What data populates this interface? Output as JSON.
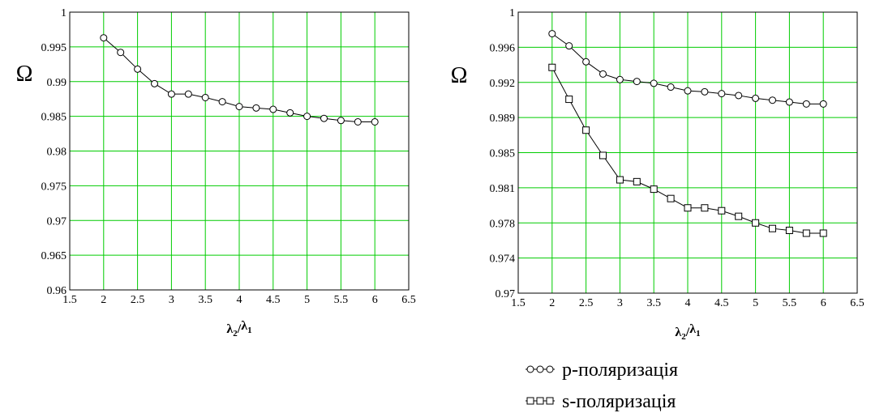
{
  "chart_data": [
    {
      "type": "line",
      "xlabel": "λ2/λ1",
      "xlabel_main": "λ",
      "xlabel_sub1": "2",
      "xlabel_sep": "/",
      "xlabel_main2": "λ",
      "xlabel_sub2": "1",
      "ylabel": "Ω",
      "xlim": [
        1.5,
        6.5
      ],
      "ylim": [
        0.96,
        1.0
      ],
      "xticks": [
        "1.5",
        "2",
        "2.5",
        "3",
        "3.5",
        "4",
        "4.5",
        "5",
        "5.5",
        "6",
        "6.5"
      ],
      "yticks": [
        "0.96",
        "0.965",
        "0.97",
        "0.975",
        "0.98",
        "0.985",
        "0.99",
        "0.995",
        "1"
      ],
      "grid": true,
      "grid_color": "#00cc00",
      "series": [
        {
          "marker": "circle",
          "x": [
            2,
            2.25,
            2.5,
            2.75,
            3,
            3.25,
            3.5,
            3.75,
            4,
            4.25,
            4.5,
            4.75,
            5,
            5.25,
            5.5,
            5.75,
            6
          ],
          "values": [
            0.9963,
            0.9942,
            0.9918,
            0.9897,
            0.9882,
            0.9882,
            0.9877,
            0.9871,
            0.9864,
            0.9862,
            0.986,
            0.9855,
            0.985,
            0.9847,
            0.9844,
            0.9842,
            0.9842
          ]
        }
      ]
    },
    {
      "type": "line",
      "xlabel": "λ2/λ1",
      "xlabel_main": "λ",
      "xlabel_sub1": "2",
      "xlabel_sep": "/",
      "xlabel_main2": "λ",
      "xlabel_sub2": "1",
      "ylabel": "Ω",
      "xlim": [
        1.5,
        6.5
      ],
      "ylim": [
        0.97,
        1.0
      ],
      "xticks": [
        "1.5",
        "2",
        "2.5",
        "3",
        "3.5",
        "4",
        "4.5",
        "5",
        "5.5",
        "6",
        "6.5"
      ],
      "yticks": [
        "0.97",
        "0.974",
        "0.978",
        "0.981",
        "0.985",
        "0.989",
        "0.992",
        "0.996",
        "1"
      ],
      "grid": true,
      "grid_color": "#00cc00",
      "legend": "bottom",
      "series": [
        {
          "name": "p-поляризація",
          "marker": "circle",
          "x": [
            2,
            2.25,
            2.5,
            2.75,
            3,
            3.25,
            3.5,
            3.75,
            4,
            4.25,
            4.5,
            4.75,
            5,
            5.25,
            5.5,
            5.75,
            6
          ],
          "values": [
            0.9977,
            0.9964,
            0.9947,
            0.9934,
            0.9928,
            0.9926,
            0.9924,
            0.992,
            0.9916,
            0.9915,
            0.9913,
            0.9911,
            0.9908,
            0.9906,
            0.9904,
            0.9902,
            0.9902
          ]
        },
        {
          "name": "s-поляризація",
          "marker": "square",
          "x": [
            2,
            2.25,
            2.5,
            2.75,
            3,
            3.25,
            3.5,
            3.75,
            4,
            4.25,
            4.5,
            4.75,
            5,
            5.25,
            5.5,
            5.75,
            6
          ],
          "values": [
            0.9941,
            0.9907,
            0.9874,
            0.9847,
            0.9821,
            0.9819,
            0.9811,
            0.9801,
            0.9791,
            0.9791,
            0.9788,
            0.9782,
            0.9775,
            0.9769,
            0.9767,
            0.9764,
            0.9764
          ]
        }
      ]
    }
  ]
}
